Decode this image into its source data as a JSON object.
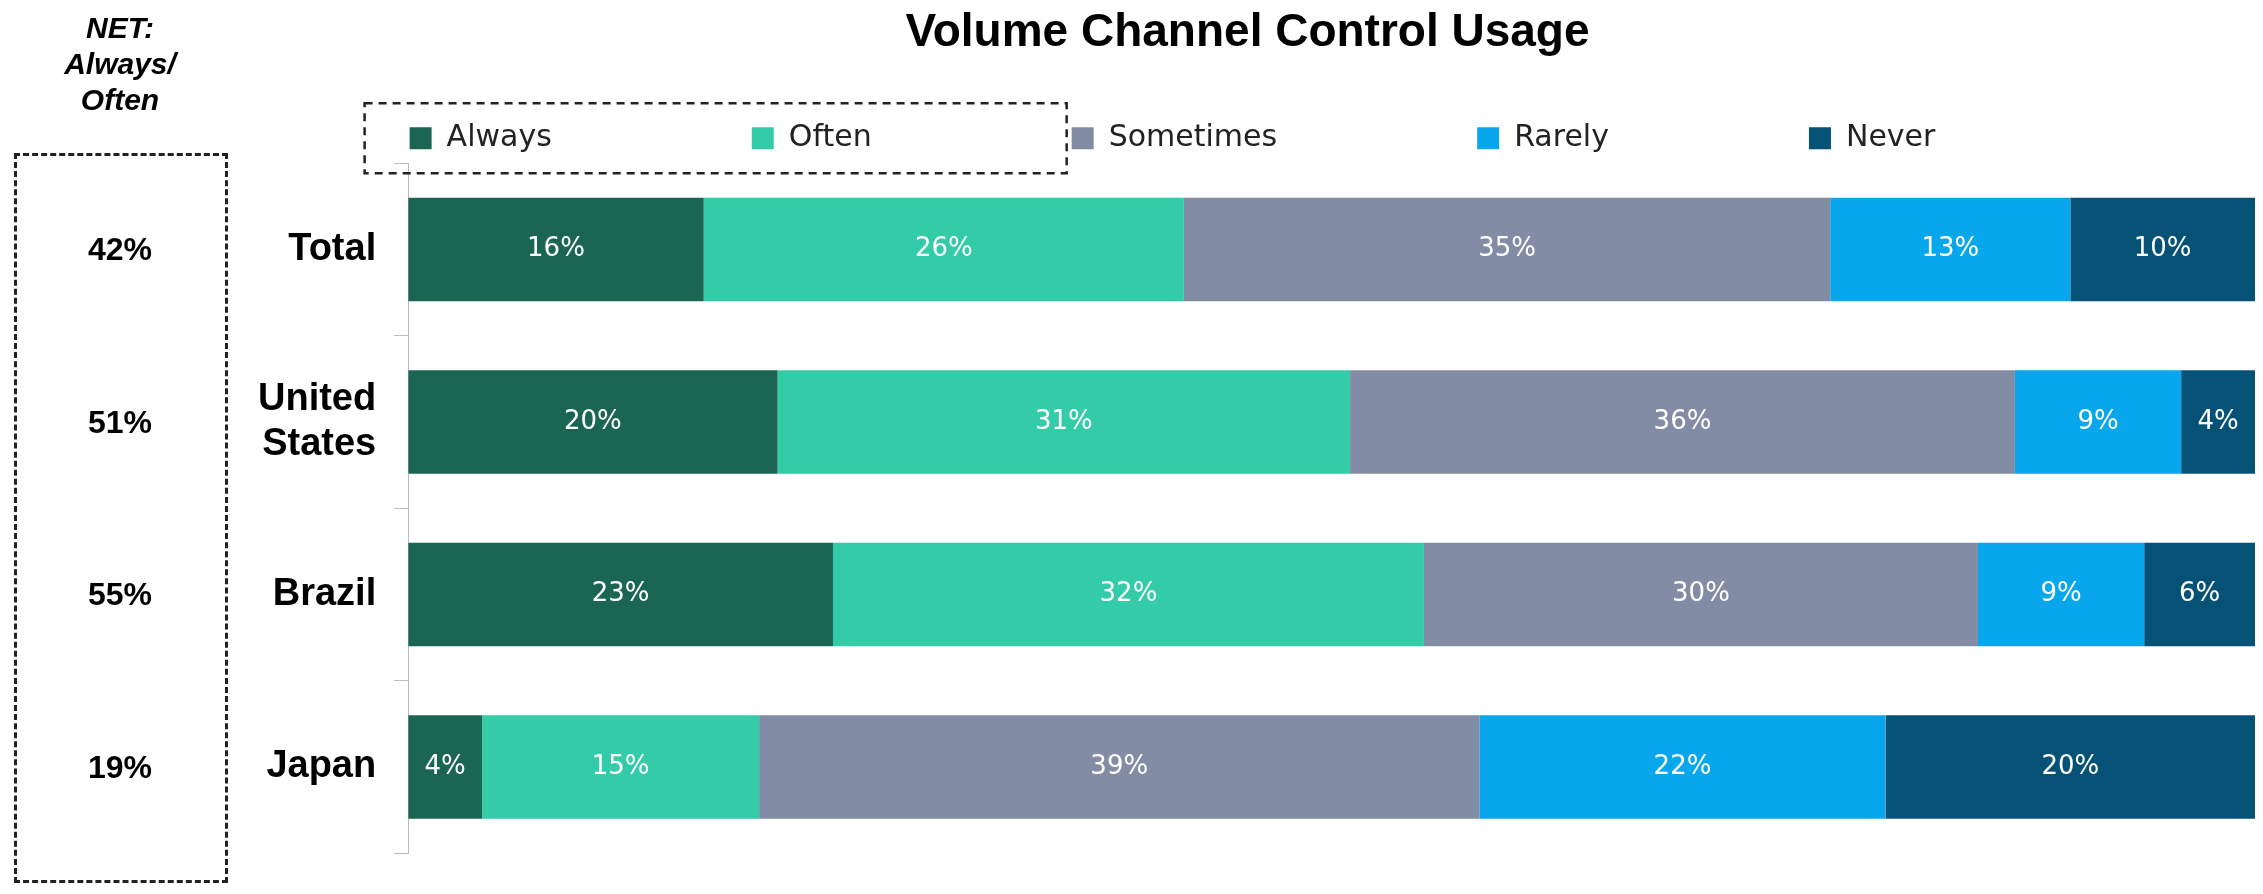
{
  "chart_data": {
    "type": "bar",
    "orientation": "horizontal",
    "stacked": true,
    "title": "Volume Channel Control Usage",
    "categories": [
      "Total",
      "United States",
      "Brazil",
      "Japan"
    ],
    "series": [
      {
        "name": "Always",
        "color": "#1a6652",
        "values": [
          16,
          20,
          23,
          4
        ],
        "value_labels": [
          "16%",
          "20%",
          "23%",
          "4%"
        ]
      },
      {
        "name": "Often",
        "color": "#33cba8",
        "values": [
          26,
          31,
          32,
          15
        ],
        "value_labels": [
          "26%",
          "31%",
          "32%",
          "15%"
        ]
      },
      {
        "name": "Sometimes",
        "color": "#828ca5",
        "values": [
          35,
          36,
          30,
          39
        ],
        "value_labels": [
          "35%",
          "36%",
          "30%",
          "39%"
        ]
      },
      {
        "name": "Rarely",
        "color": "#08a6ec",
        "values": [
          13,
          9,
          9,
          22
        ],
        "value_labels": [
          "13%",
          "9%",
          "9%",
          "22%"
        ]
      },
      {
        "name": "Never",
        "color": "#065277",
        "values": [
          10,
          4,
          6,
          20
        ],
        "value_labels": [
          "10%",
          "4%",
          "6%",
          "20%"
        ]
      }
    ],
    "tick_labels": "y",
    "legend": "top",
    "annotations": [
      "NET: Always/ Often",
      "42%",
      "51%",
      "55%",
      "19%"
    ]
  }
}
